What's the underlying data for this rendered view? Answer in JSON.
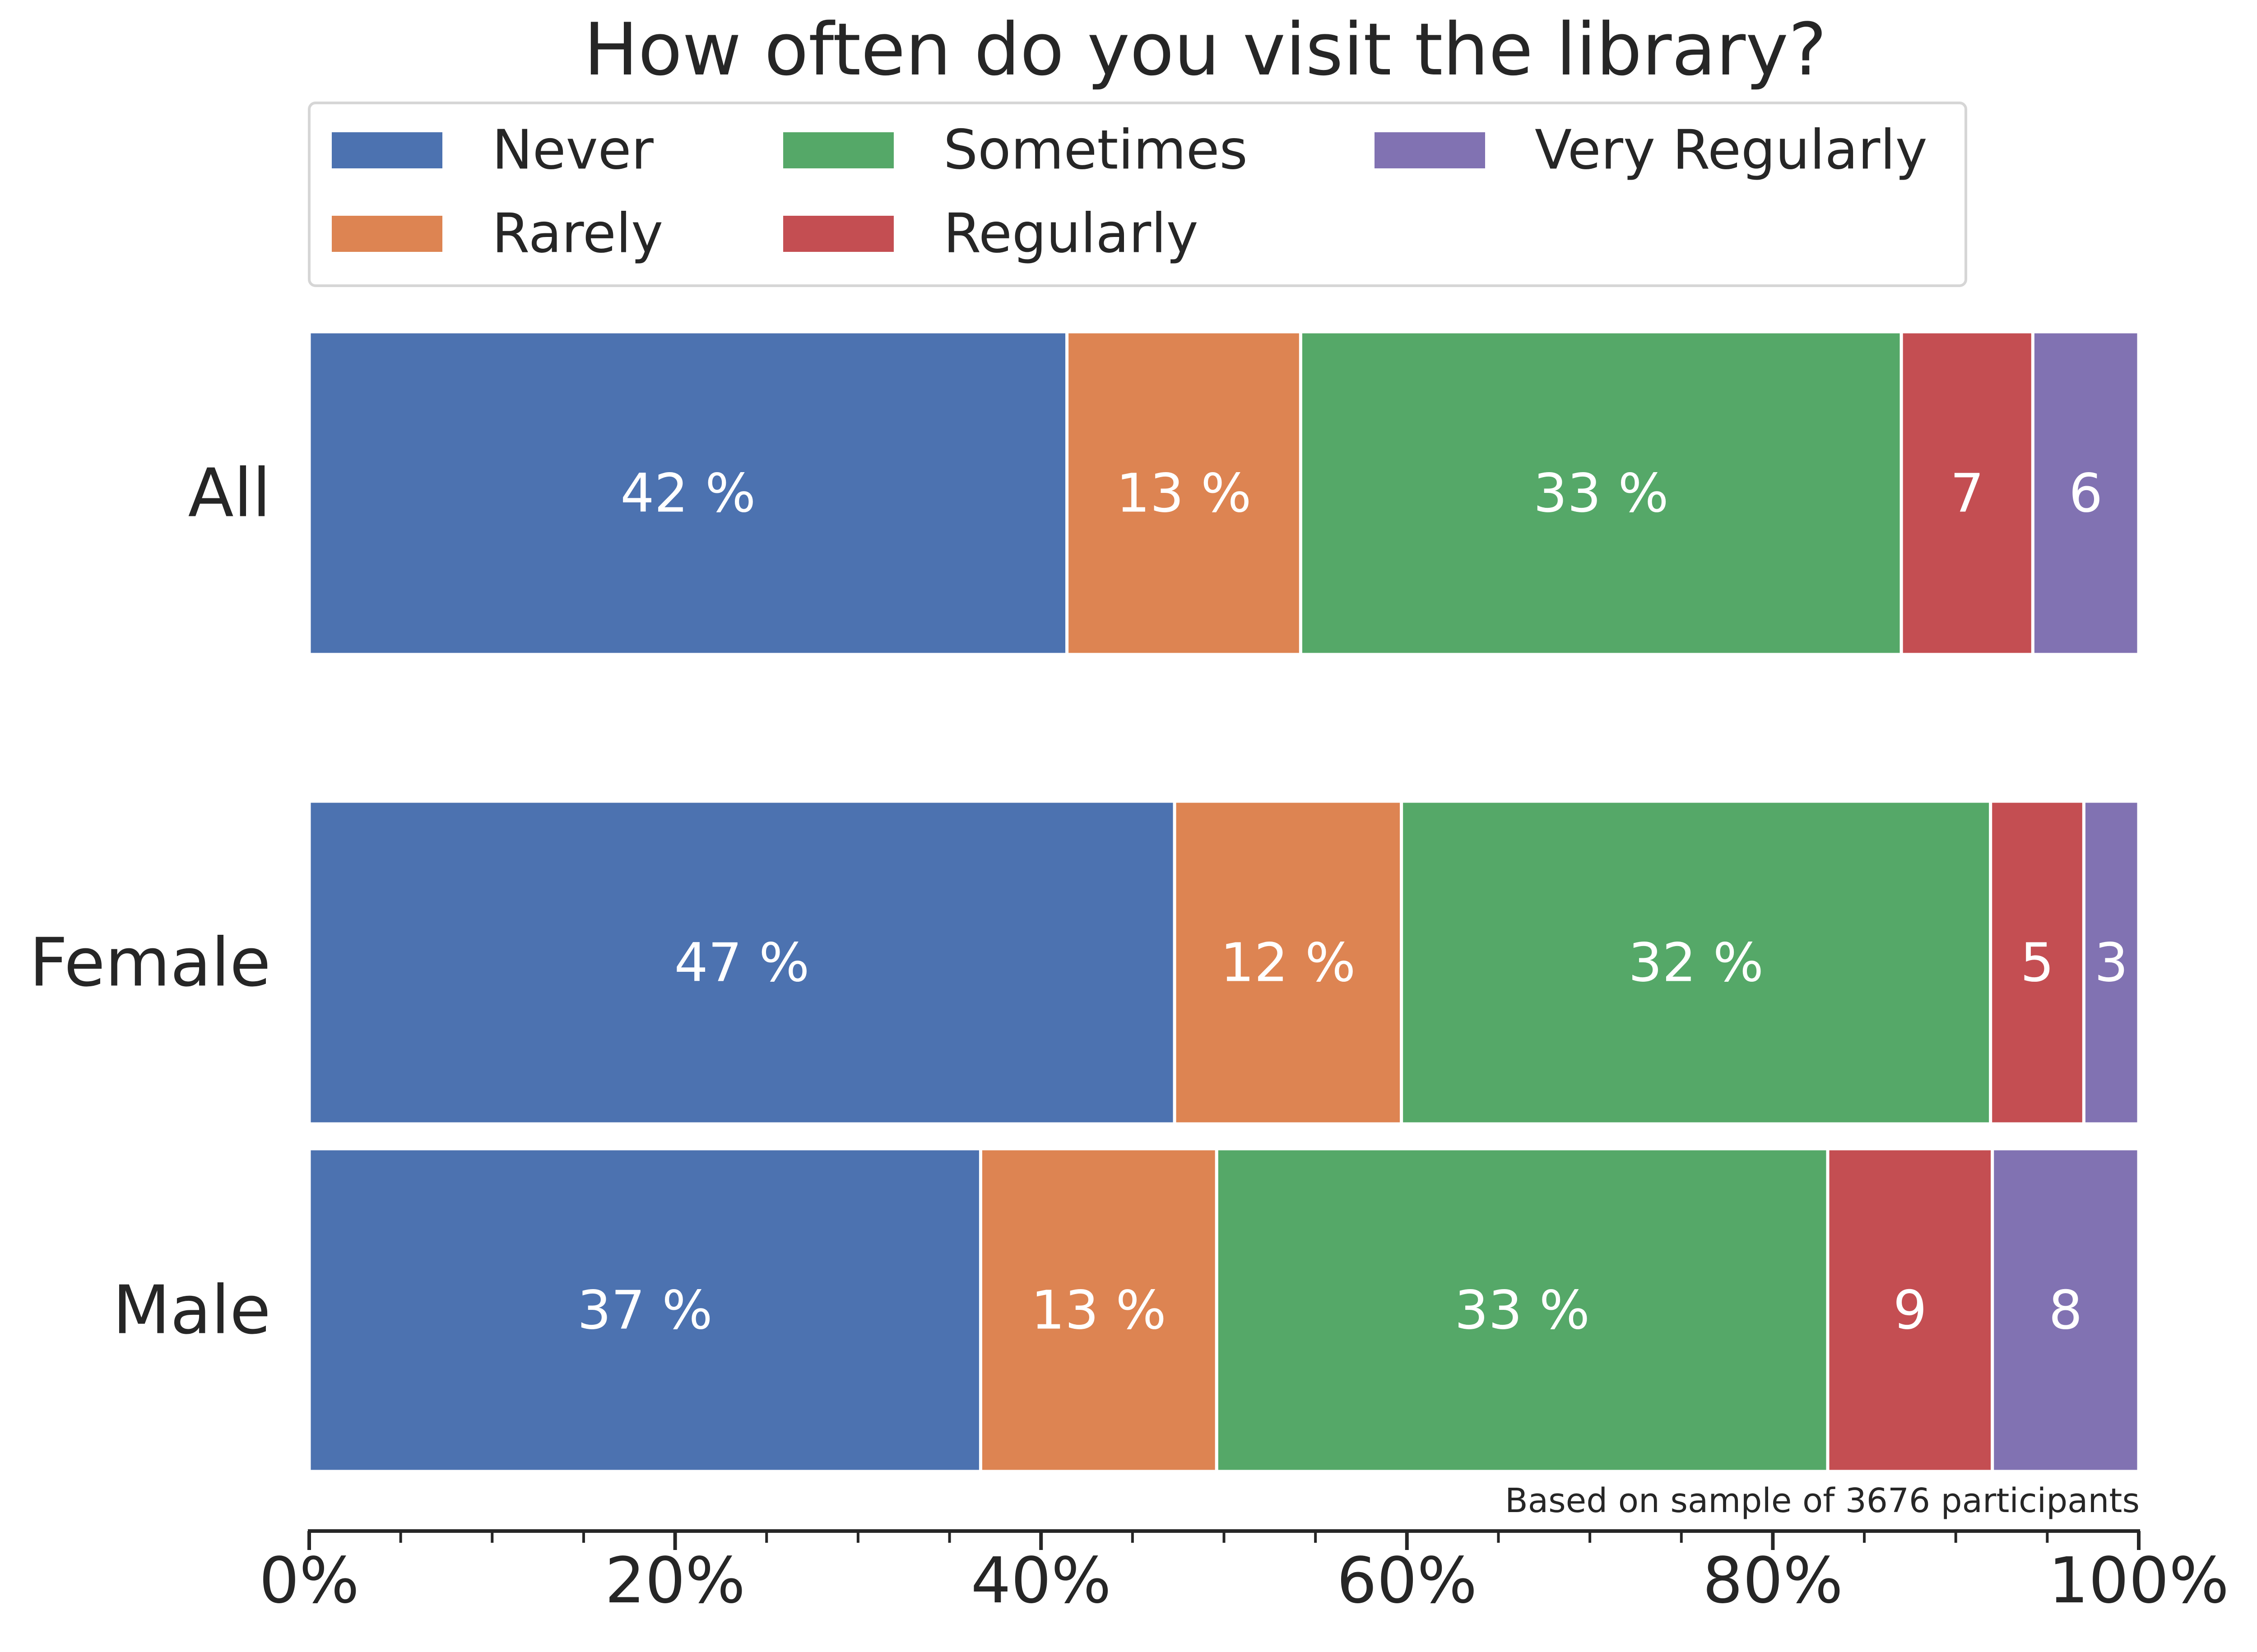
{
  "chart_data": {
    "type": "bar",
    "orientation": "horizontal",
    "stacked": true,
    "title": "How often do you visit the library?",
    "categories": [
      "All",
      "Female",
      "Male"
    ],
    "series": [
      {
        "name": "Never",
        "color": "#4C72B0",
        "values": [
          41.5,
          47.3,
          36.7
        ],
        "labels": [
          "42 %",
          "47 %",
          "37 %"
        ]
      },
      {
        "name": "Rarely",
        "color": "#DD8452",
        "values": [
          12.8,
          12.4,
          12.9
        ],
        "labels": [
          "13 %",
          "12 %",
          "13 %"
        ]
      },
      {
        "name": "Sometimes",
        "color": "#55A868",
        "values": [
          32.9,
          32.2,
          33.4
        ],
        "labels": [
          "33 %",
          "32 %",
          "33 %"
        ]
      },
      {
        "name": "Regularly",
        "color": "#C44E52",
        "values": [
          7.2,
          5.1,
          9.0
        ],
        "labels": [
          "7",
          "5",
          "9"
        ]
      },
      {
        "name": "Very Regularly",
        "color": "#8172B2",
        "values": [
          5.8,
          3.0,
          8.0
        ],
        "labels": [
          "6",
          "3",
          "8"
        ]
      }
    ],
    "xlim": [
      0,
      100
    ],
    "xticks": [
      "0%",
      "20%",
      "40%",
      "60%",
      "80%",
      "100%"
    ],
    "minor_tick_step": 5,
    "legend_placement": "top",
    "legend_columns": 3,
    "annotation": "Based on sample of 3676 participants",
    "grid": false
  }
}
